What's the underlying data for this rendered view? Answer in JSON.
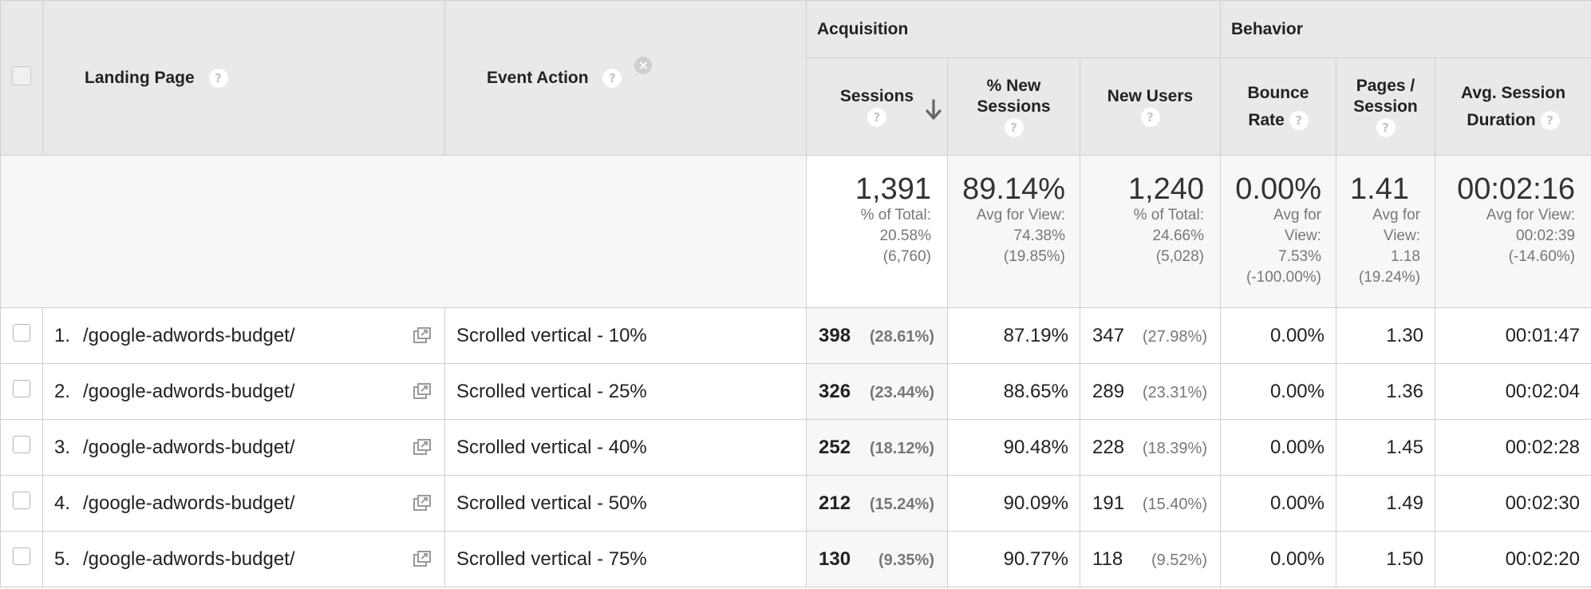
{
  "header": {
    "groups": {
      "acquisition": "Acquisition",
      "behavior": "Behavior"
    },
    "landing_page": "Landing Page",
    "event_action": "Event Action",
    "help_glyph": "?",
    "remove_glyph": "×",
    "sessions": "Sessions",
    "pct_new_sessions_1": "% New",
    "pct_new_sessions_2": "Sessions",
    "new_users": "New Users",
    "bounce_rate_1": "Bounce",
    "bounce_rate_2": "Rate",
    "pages_session_1": "Pages /",
    "pages_session_2": "Session",
    "avg_dur_1": "Avg. Session",
    "avg_dur_2": "Duration"
  },
  "totals": {
    "sessions": {
      "value": "1,391",
      "l1": "% of Total:",
      "l2": "20.58%",
      "l3": "(6,760)"
    },
    "pct_new": {
      "value": "89.14%",
      "l1": "Avg for View:",
      "l2": "74.38%",
      "l3": "(19.85%)"
    },
    "new_users": {
      "value": "1,240",
      "l1": "% of Total:",
      "l2": "24.66%",
      "l3": "(5,028)"
    },
    "bounce": {
      "value": "0.00%",
      "l1": "Avg for",
      "l2": "View:",
      "l3": "7.53%",
      "l4": "(-100.00%)"
    },
    "pages": {
      "value": "1.41",
      "l1": "Avg for",
      "l2": "View:",
      "l3": "1.18",
      "l4": "(19.24%)"
    },
    "duration": {
      "value": "00:02:16",
      "l1": "Avg for View:",
      "l2": "00:02:39",
      "l3": "(-14.60%)"
    }
  },
  "rows": [
    {
      "idx": "1.",
      "page": "/google-adwords-budget/",
      "action": "Scrolled vertical - 10%",
      "sessions": "398",
      "sessions_pct": "(28.61%)",
      "pct_new": "87.19%",
      "new_users": "347",
      "new_users_pct": "(27.98%)",
      "bounce": "0.00%",
      "pages": "1.30",
      "duration": "00:01:47"
    },
    {
      "idx": "2.",
      "page": "/google-adwords-budget/",
      "action": "Scrolled vertical - 25%",
      "sessions": "326",
      "sessions_pct": "(23.44%)",
      "pct_new": "88.65%",
      "new_users": "289",
      "new_users_pct": "(23.31%)",
      "bounce": "0.00%",
      "pages": "1.36",
      "duration": "00:02:04"
    },
    {
      "idx": "3.",
      "page": "/google-adwords-budget/",
      "action": "Scrolled vertical - 40%",
      "sessions": "252",
      "sessions_pct": "(18.12%)",
      "pct_new": "90.48%",
      "new_users": "228",
      "new_users_pct": "(18.39%)",
      "bounce": "0.00%",
      "pages": "1.45",
      "duration": "00:02:28"
    },
    {
      "idx": "4.",
      "page": "/google-adwords-budget/",
      "action": "Scrolled vertical - 50%",
      "sessions": "212",
      "sessions_pct": "(15.24%)",
      "pct_new": "90.09%",
      "new_users": "191",
      "new_users_pct": "(15.40%)",
      "bounce": "0.00%",
      "pages": "1.49",
      "duration": "00:02:30"
    },
    {
      "idx": "5.",
      "page": "/google-adwords-budget/",
      "action": "Scrolled vertical - 75%",
      "sessions": "130",
      "sessions_pct": "(9.35%)",
      "pct_new": "90.77%",
      "new_users": "118",
      "new_users_pct": "(9.52%)",
      "bounce": "0.00%",
      "pages": "1.50",
      "duration": "00:02:20"
    }
  ]
}
